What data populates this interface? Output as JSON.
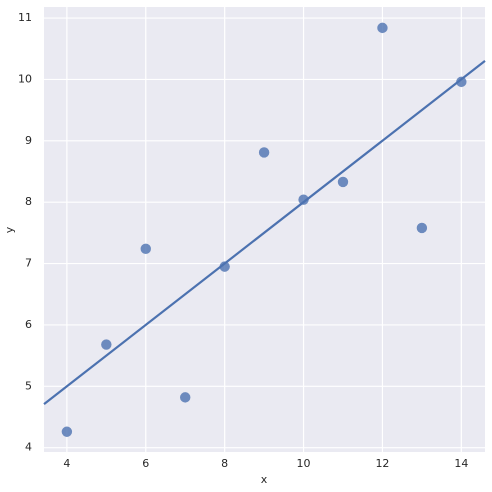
{
  "chart_data": {
    "type": "scatter",
    "x_label": "x",
    "y_label": "y",
    "series": [
      {
        "color": "#4c72b0",
        "x": [
          10,
          8,
          13,
          9,
          11,
          14,
          6,
          4,
          12,
          7,
          5
        ],
        "values": [
          8.04,
          6.95,
          7.58,
          8.81,
          8.33,
          9.96,
          7.24,
          4.26,
          10.84,
          4.82,
          5.68
        ]
      }
    ],
    "regression": true,
    "xlim": [
      3.42,
      14.6
    ],
    "ylim": [
      3.93,
      11.18
    ],
    "xticks": [
      4,
      6,
      8,
      10,
      12,
      14
    ],
    "yticks": [
      4,
      5,
      6,
      7,
      8,
      9,
      10,
      11
    ],
    "grid": true,
    "background": "#eaeaf2"
  }
}
